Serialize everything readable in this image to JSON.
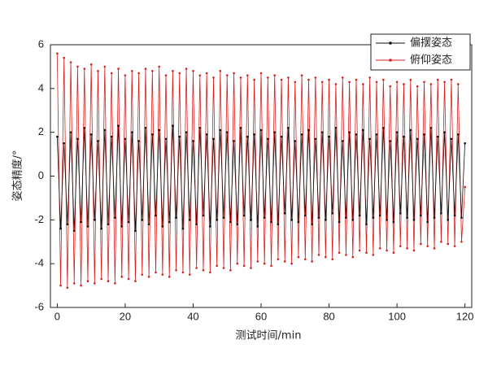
{
  "chart_data": {
    "type": "line",
    "xlabel": "测试时间/min",
    "ylabel": "姿态精度/°",
    "xlim": [
      -2,
      122
    ],
    "ylim": [
      -6,
      6
    ],
    "xticks": [
      0,
      20,
      40,
      60,
      80,
      100,
      120
    ],
    "yticks": [
      -6,
      -4,
      -2,
      0,
      2,
      4,
      6
    ],
    "legend": "upper right",
    "x": [
      0,
      1,
      2,
      3,
      4,
      5,
      6,
      7,
      8,
      9,
      10,
      11,
      12,
      13,
      14,
      15,
      16,
      17,
      18,
      19,
      20,
      21,
      22,
      23,
      24,
      25,
      26,
      27,
      28,
      29,
      30,
      31,
      32,
      33,
      34,
      35,
      36,
      37,
      38,
      39,
      40,
      41,
      42,
      43,
      44,
      45,
      46,
      47,
      48,
      49,
      50,
      51,
      52,
      53,
      54,
      55,
      56,
      57,
      58,
      59,
      60,
      61,
      62,
      63,
      64,
      65,
      66,
      67,
      68,
      69,
      70,
      71,
      72,
      73,
      74,
      75,
      76,
      77,
      78,
      79,
      80,
      81,
      82,
      83,
      84,
      85,
      86,
      87,
      88,
      89,
      90,
      91,
      92,
      93,
      94,
      95,
      96,
      97,
      98,
      99,
      100,
      101,
      102,
      103,
      104,
      105,
      106,
      107,
      108,
      109,
      110,
      111,
      112,
      113,
      114,
      115,
      116,
      117,
      118,
      119,
      120
    ],
    "series": [
      {
        "name": "偏摆姿态",
        "color": "#111111",
        "values": [
          1.8,
          -2.4,
          1.5,
          -2.2,
          2.0,
          -2.5,
          1.7,
          -2.1,
          2.2,
          -2.3,
          1.9,
          -2.0,
          1.6,
          -2.4,
          2.1,
          -2.2,
          1.8,
          -1.9,
          2.3,
          -2.3,
          1.7,
          -2.1,
          2.0,
          -2.5,
          1.6,
          -2.0,
          2.2,
          -2.2,
          1.9,
          -1.8,
          2.1,
          -2.3,
          1.7,
          -2.1,
          2.3,
          -1.9,
          1.8,
          -2.4,
          2.0,
          -2.0,
          1.6,
          -2.2,
          2.2,
          -1.8,
          1.9,
          -2.3,
          1.7,
          -2.0,
          2.1,
          -1.9,
          2.0,
          -2.1,
          1.6,
          -2.2,
          2.2,
          -1.8,
          1.8,
          -2.0,
          1.9,
          -2.3,
          2.1,
          -1.9,
          1.7,
          -2.1,
          2.0,
          -2.2,
          1.8,
          -1.7,
          2.2,
          -2.0,
          1.6,
          -2.1,
          1.9,
          -1.8,
          2.1,
          -2.2,
          1.7,
          -1.9,
          2.0,
          -2.0,
          1.8,
          -1.7,
          2.2,
          -2.1,
          1.6,
          -1.9,
          2.0,
          -2.0,
          1.9,
          -1.8,
          2.1,
          -2.2,
          1.7,
          -1.9,
          1.9,
          -1.8,
          2.2,
          -2.0,
          1.6,
          -2.1,
          2.0,
          -1.7,
          1.8,
          -1.9,
          2.1,
          -2.0,
          1.7,
          -1.8,
          1.9,
          -2.1,
          2.2,
          -1.9,
          1.8,
          -1.7,
          2.0,
          -2.0,
          1.7,
          -1.8,
          1.9,
          -1.9,
          1.5
        ]
      },
      {
        "name": "俯仰姿态",
        "color": "#d42020",
        "values": [
          5.6,
          -5.0,
          5.4,
          -5.1,
          5.2,
          -4.9,
          5.0,
          -5.0,
          4.9,
          -4.8,
          5.1,
          -4.9,
          4.8,
          -4.7,
          5.0,
          -4.8,
          4.7,
          -4.9,
          4.9,
          -4.6,
          4.6,
          -4.7,
          4.8,
          -4.8,
          4.7,
          -4.5,
          4.9,
          -4.6,
          4.8,
          -4.4,
          5.0,
          -4.5,
          4.6,
          -4.6,
          4.8,
          -4.3,
          4.7,
          -4.4,
          4.9,
          -4.5,
          4.8,
          -4.2,
          4.6,
          -4.3,
          4.7,
          -4.4,
          4.5,
          -4.1,
          4.8,
          -4.2,
          4.6,
          -4.3,
          4.7,
          -4.0,
          4.5,
          -4.1,
          4.6,
          -4.2,
          4.4,
          -3.9,
          4.7,
          -4.0,
          4.5,
          -4.1,
          4.6,
          -3.8,
          4.4,
          -3.9,
          4.5,
          -4.0,
          4.3,
          -3.7,
          4.6,
          -3.8,
          4.4,
          -3.9,
          4.5,
          -3.6,
          4.3,
          -3.7,
          4.4,
          -3.8,
          4.2,
          -3.5,
          4.5,
          -3.6,
          4.3,
          -3.7,
          4.4,
          -3.4,
          4.2,
          -3.5,
          4.5,
          -3.6,
          4.3,
          -3.3,
          4.4,
          -3.4,
          4.1,
          -3.5,
          4.3,
          -3.2,
          4.2,
          -3.3,
          4.4,
          -3.4,
          4.1,
          -3.1,
          4.3,
          -3.2,
          4.2,
          -3.3,
          4.4,
          -3.0,
          4.3,
          -3.1,
          4.4,
          -3.2,
          4.2,
          -3.0,
          -0.5
        ]
      }
    ]
  }
}
